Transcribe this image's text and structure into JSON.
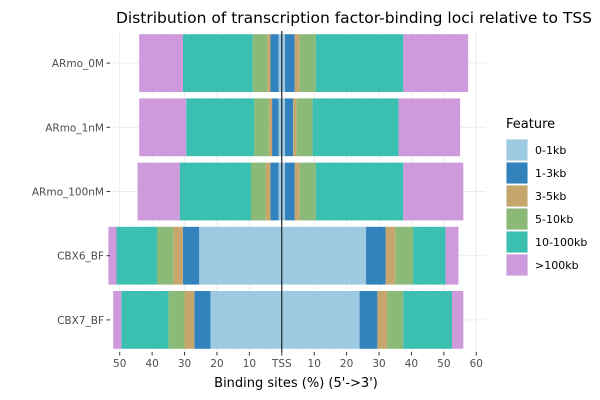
{
  "chart_data": {
    "type": "bar",
    "orientation": "horizontal-diverging",
    "title": "Distribution of transcription factor-binding loci relative to TSS",
    "xlabel": "Binding sites (%) (5'->3')",
    "ylabel": "",
    "xlim": [
      -53,
      63
    ],
    "x_ticks": [
      -50,
      -40,
      -30,
      -20,
      -10,
      0,
      10,
      20,
      30,
      40,
      50,
      60
    ],
    "x_tick_labels": [
      "50",
      "40",
      "30",
      "20",
      "10",
      "TSS",
      "10",
      "20",
      "30",
      "40",
      "50",
      "60"
    ],
    "grid": true,
    "legend_position": "right",
    "categories": [
      "ARmo_0M",
      "ARmo_1nM",
      "ARmo_100nM",
      "CBX6_BF",
      "CBX7_BF"
    ],
    "legend": {
      "title": "Feature",
      "items": [
        {
          "label": "0-1kb",
          "color": "#9ECAE1"
        },
        {
          "label": "1-3kb",
          "color": "#3182BD"
        },
        {
          "label": "3-5kb",
          "color": "#C6A66C"
        },
        {
          "label": "5-10kb",
          "color": "#8BBA78"
        },
        {
          "label": "10-100kb",
          "color": "#3BBFB1"
        },
        {
          "label": ">100kb",
          "color": "#CE9ADB"
        }
      ]
    },
    "series": [
      {
        "name": "0-1kb",
        "upstream": [
          1,
          1,
          1,
          25.5,
          22
        ],
        "downstream": [
          1,
          1,
          1,
          26,
          24
        ]
      },
      {
        "name": "1-3kb",
        "upstream": [
          2.5,
          2,
          2.5,
          5,
          5
        ],
        "downstream": [
          3,
          2.5,
          3,
          6,
          5.5
        ]
      },
      {
        "name": "3-5kb",
        "upstream": [
          1,
          1,
          1.5,
          3,
          3
        ],
        "downstream": [
          1.5,
          1,
          1.5,
          3,
          3
        ]
      },
      {
        "name": "5-10kb",
        "upstream": [
          4.5,
          4.5,
          4.5,
          5,
          5
        ],
        "downstream": [
          5,
          5,
          5,
          5.5,
          5
        ]
      },
      {
        "name": "10-100kb",
        "upstream": [
          21.5,
          21,
          22,
          12.5,
          14.5
        ],
        "downstream": [
          27,
          26.5,
          27,
          10,
          15
        ]
      },
      {
        "name": ">100kb",
        "upstream": [
          13.5,
          14.5,
          13,
          2.5,
          2.5
        ],
        "downstream": [
          20,
          19,
          18.5,
          4,
          3.5
        ]
      }
    ]
  }
}
